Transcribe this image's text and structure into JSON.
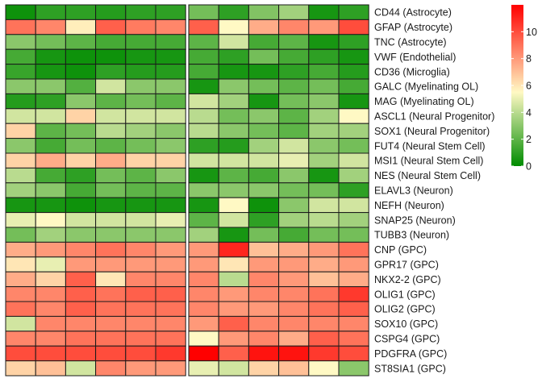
{
  "chart_data": {
    "type": "heatmap",
    "title": "",
    "rows": [
      "CD44 (Astrocyte)",
      "GFAP (Astrocyte)",
      "TNC (Astrocyte)",
      "VWF (Endothelial)",
      "CD36 (Microglia)",
      "GALC (Myelinating OL)",
      "MAG (Myelinating OL)",
      "ASCL1 (Neural Progenitor)",
      "SOX1 (Neural Progenitor)",
      "FUT4 (Neural Stem Cell)",
      "MSI1 (Neural Stem Cell)",
      "NES (Neural Stem Cell)",
      "ELAVL3 (Neuron)",
      "NEFH (Neuron)",
      "SNAP25 (Neuron)",
      "TUBB3 (Neuron)",
      "CNP (GPC)",
      "GPR17 (GPC)",
      "NKX2-2 (GPC)",
      "OLIG1 (GPC)",
      "OLIG2 (GPC)",
      "SOX10 (GPC)",
      "CSPG4 (GPC)",
      "PDGFRA (GPC)",
      "ST8SIA1 (GPC)"
    ],
    "column_groups": [
      6,
      6
    ],
    "values": [
      [
        0.3,
        1.0,
        1.0,
        0.8,
        1.0,
        1.0,
        2.5,
        1.0,
        2.8,
        3.5,
        0.5,
        1.0
      ],
      [
        9.0,
        8.5,
        5.8,
        9.5,
        8.8,
        8.5,
        9.5,
        5.5,
        7.5,
        8.5,
        8.0,
        10.0
      ],
      [
        3.0,
        2.5,
        2.0,
        1.5,
        1.5,
        1.5,
        2.0,
        4.5,
        1.5,
        2.0,
        0.5,
        1.0
      ],
      [
        1.5,
        0.5,
        0.3,
        0.3,
        0.5,
        0.5,
        1.5,
        1.0,
        2.5,
        1.5,
        1.0,
        0.5
      ],
      [
        1.2,
        0.5,
        0.3,
        1.0,
        0.8,
        0.8,
        1.5,
        0.5,
        0.5,
        1.0,
        1.5,
        0.8
      ],
      [
        3.0,
        3.0,
        1.8,
        4.5,
        3.0,
        3.0,
        0.5,
        3.0,
        2.5,
        2.0,
        2.5,
        1.5
      ],
      [
        0.8,
        1.0,
        3.0,
        2.0,
        2.5,
        2.0,
        4.5,
        3.5,
        0.5,
        2.5,
        3.0,
        0.5
      ],
      [
        4.5,
        4.5,
        6.5,
        4.5,
        4.5,
        4.5,
        4.0,
        2.5,
        3.0,
        2.0,
        3.5,
        5.5
      ],
      [
        6.5,
        2.0,
        2.5,
        4.0,
        3.5,
        3.0,
        4.0,
        3.0,
        2.5,
        2.0,
        3.5,
        3.5
      ],
      [
        3.0,
        1.5,
        2.5,
        2.0,
        2.5,
        3.0,
        1.0,
        0.8,
        3.5,
        4.5,
        3.0,
        2.5
      ],
      [
        6.5,
        7.5,
        6.5,
        7.5,
        6.5,
        6.5,
        4.5,
        4.5,
        4.5,
        5.0,
        3.5,
        4.5
      ],
      [
        4.0,
        1.5,
        1.0,
        2.5,
        2.0,
        3.0,
        0.5,
        2.0,
        1.5,
        3.0,
        0.5,
        3.5
      ],
      [
        3.5,
        3.0,
        1.5,
        2.5,
        2.0,
        2.0,
        3.0,
        3.0,
        3.0,
        2.5,
        2.5,
        1.0
      ],
      [
        0.5,
        0.5,
        0.3,
        0.5,
        0.5,
        0.5,
        0.5,
        5.5,
        0.3,
        3.0,
        4.5,
        4.5
      ],
      [
        5.0,
        5.5,
        4.5,
        4.5,
        4.5,
        5.0,
        2.0,
        4.5,
        1.0,
        3.5,
        4.0,
        3.5
      ],
      [
        2.5,
        3.5,
        3.0,
        3.0,
        3.0,
        3.0,
        3.5,
        0.5,
        2.5,
        1.5,
        2.5,
        2.5
      ],
      [
        7.5,
        8.0,
        8.5,
        9.0,
        8.5,
        8.0,
        8.0,
        11.0,
        7.0,
        7.5,
        8.0,
        9.0
      ],
      [
        6.0,
        5.0,
        8.0,
        8.0,
        8.0,
        8.0,
        8.0,
        6.0,
        8.0,
        8.0,
        7.5,
        8.0
      ],
      [
        7.5,
        6.5,
        9.5,
        6.0,
        8.5,
        8.5,
        8.5,
        4.0,
        8.5,
        8.0,
        7.0,
        7.5
      ],
      [
        8.5,
        8.5,
        9.5,
        9.0,
        9.5,
        9.5,
        8.5,
        8.0,
        8.5,
        8.5,
        9.0,
        10.5
      ],
      [
        9.0,
        8.5,
        9.5,
        9.0,
        9.0,
        9.0,
        8.5,
        8.0,
        8.0,
        8.5,
        9.0,
        9.5
      ],
      [
        4.5,
        8.5,
        8.5,
        8.5,
        8.5,
        8.5,
        8.0,
        9.5,
        8.5,
        8.5,
        8.5,
        8.5
      ],
      [
        8.5,
        8.5,
        9.0,
        9.0,
        9.0,
        9.0,
        5.5,
        8.0,
        8.5,
        7.5,
        9.5,
        9.0
      ],
      [
        10.0,
        10.0,
        10.0,
        10.0,
        10.0,
        10.5,
        12.0,
        9.5,
        11.5,
        11.5,
        10.5,
        10.0
      ],
      [
        6.5,
        7.0,
        4.5,
        8.5,
        8.0,
        8.0,
        5.0,
        4.5,
        6.5,
        7.0,
        5.5,
        3.0
      ]
    ],
    "colorbar": {
      "min": 0,
      "max": 12,
      "ticks": [
        0,
        2,
        4,
        6,
        8,
        10
      ],
      "colors": [
        "#008c00",
        "#fff9c4",
        "#ff0000"
      ],
      "midpoint": 5.5
    },
    "legend_position": "right"
  }
}
